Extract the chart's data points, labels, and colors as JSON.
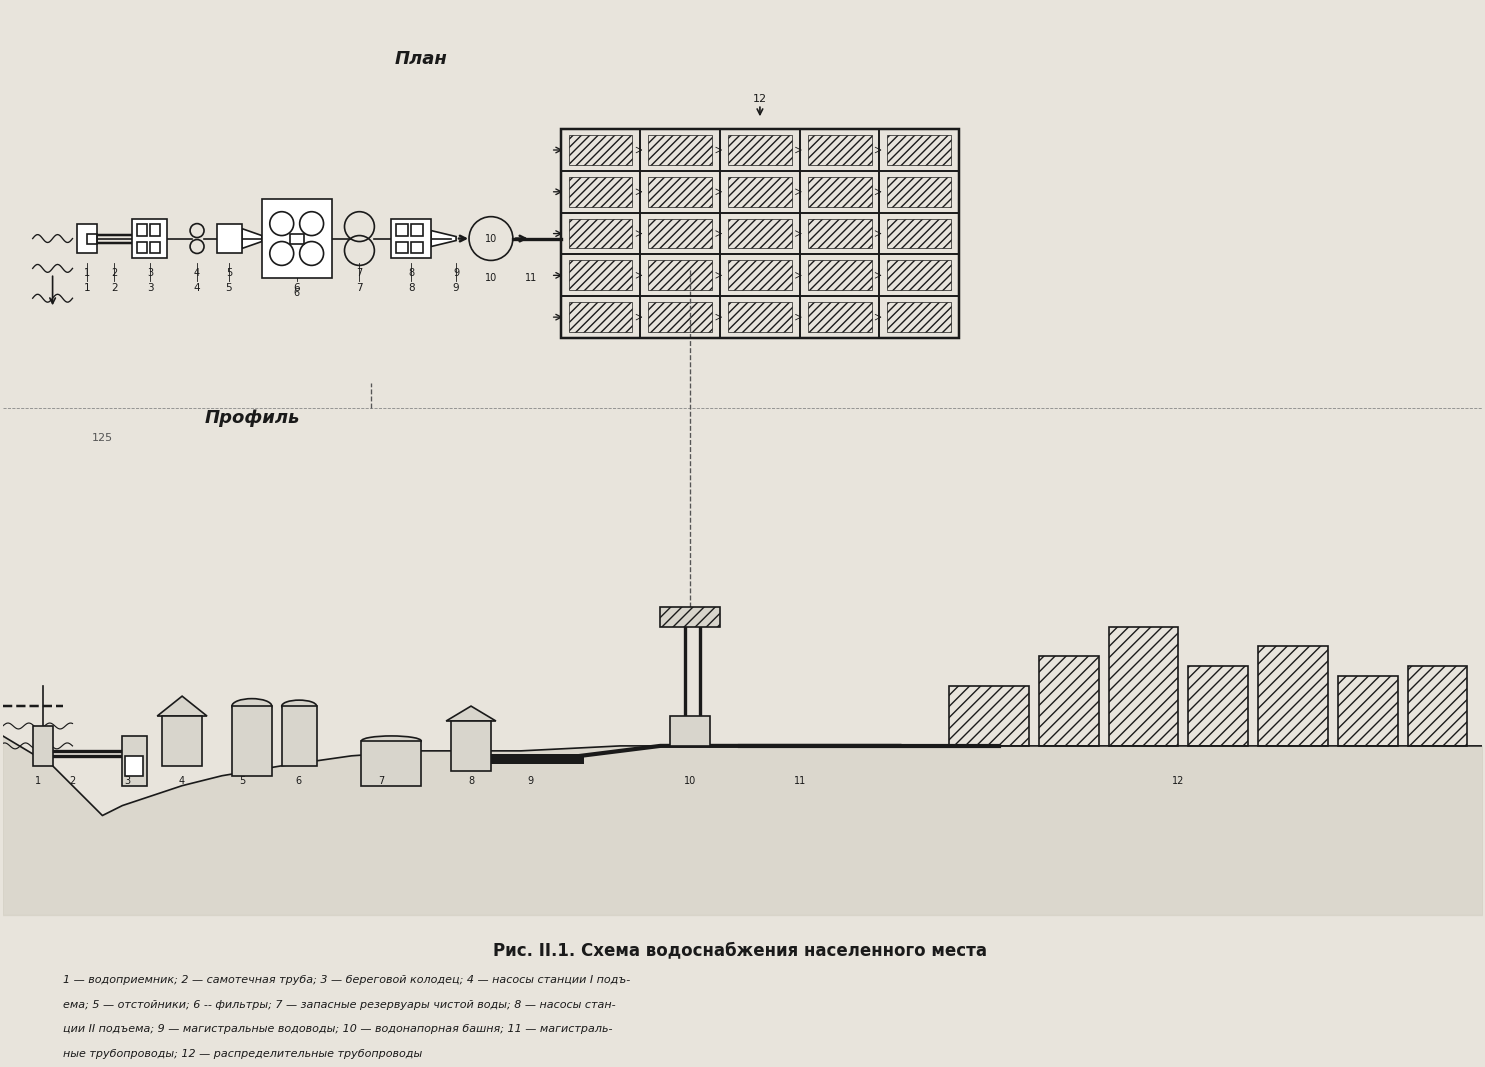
{
  "title": "Рис. II.1. Схема водоснабжения населенного места",
  "plan_label": "План",
  "profile_label": "Профиль",
  "legend_text": "1 — водоприемник; 2 — самотечная труба; 3 — береговой колодец; 4 — насосы станции I подъ-\nема; 5 — отстойники; 6 -- фильтры; 7 — запасные резервуары чистой воды; 8 — насосы стан-\nции II подъема; 9 — магистральные водоводы; 10 — водонапорная башня; 11 — магистраль-\nные трубопроводы; 12 — распределительные трубопроводы",
  "bg_color": "#e8e4dc",
  "line_color": "#1a1a1a",
  "hatch_color": "#2a2a2a"
}
